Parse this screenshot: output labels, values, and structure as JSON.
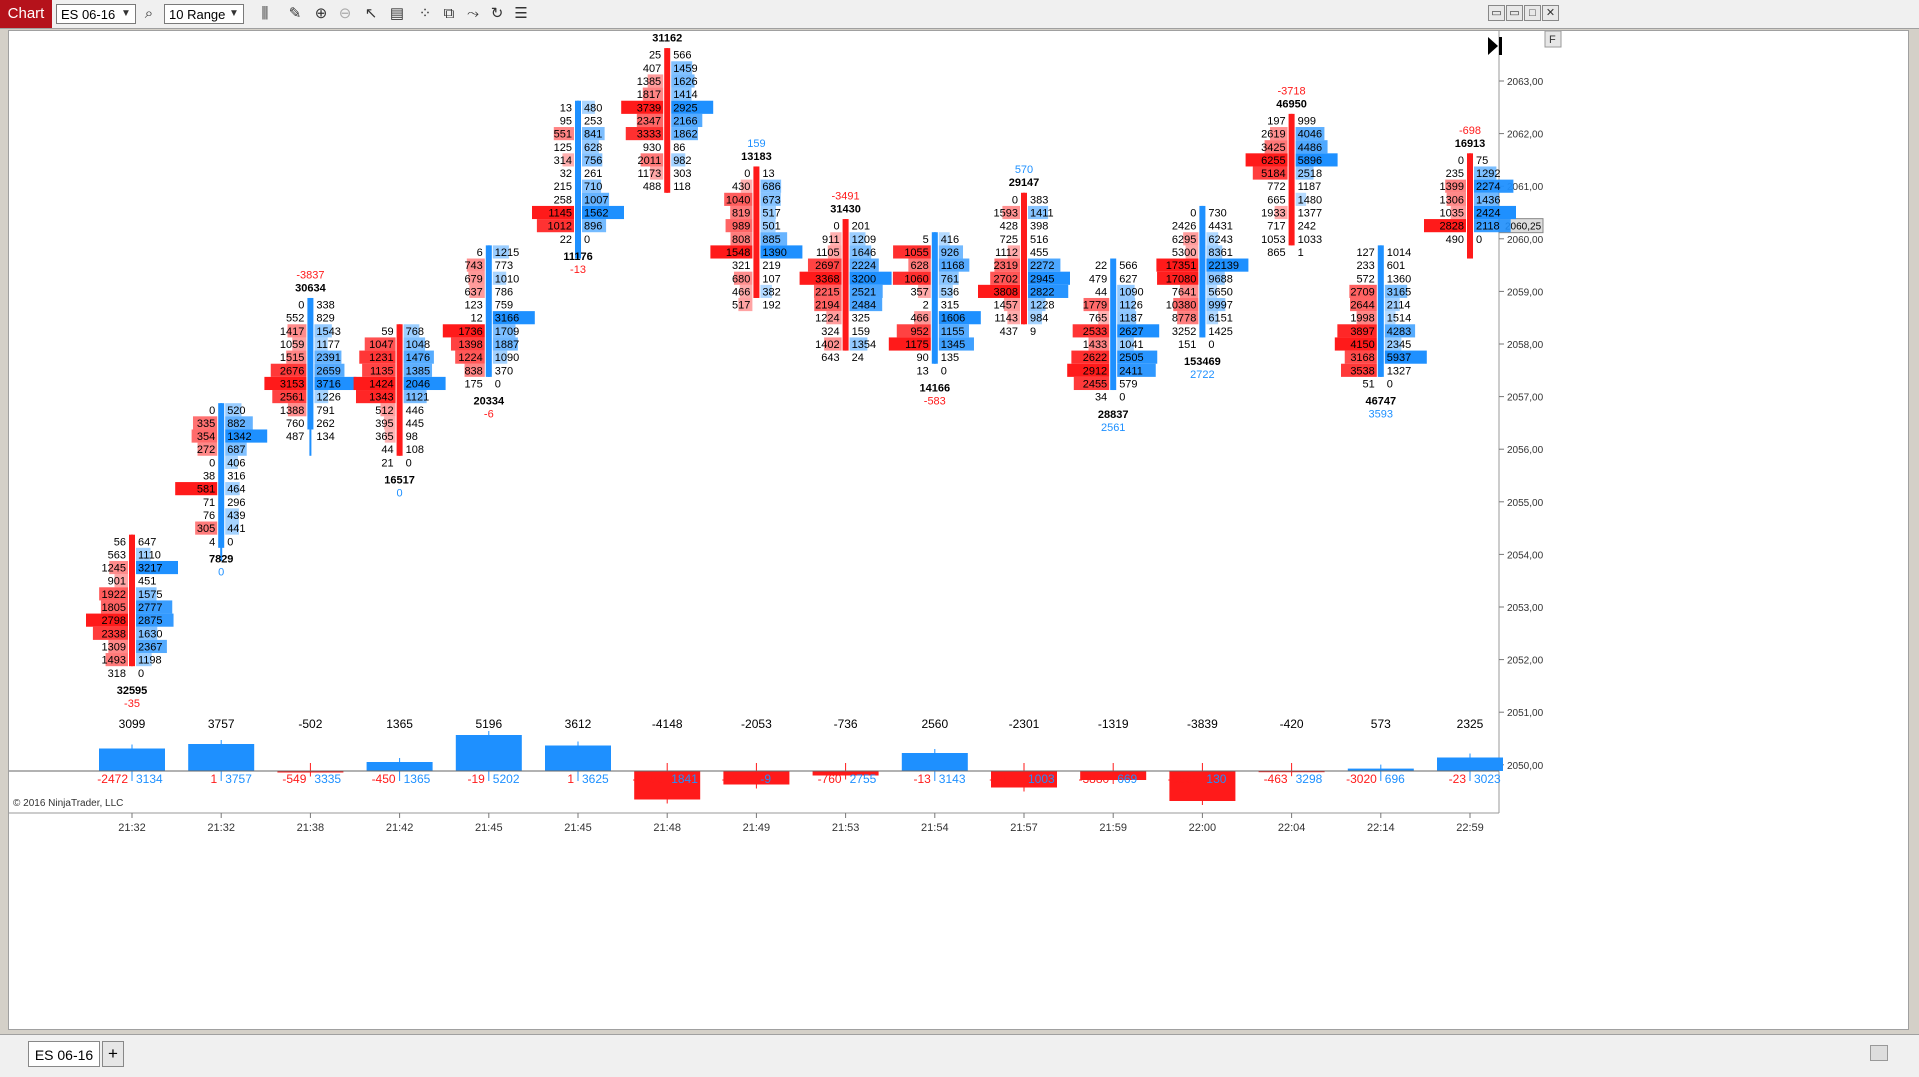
{
  "toolbar": {
    "chart_label": "Chart",
    "instrument": "ES 06-16",
    "period": "10 Range",
    "icons": [
      "search-icon",
      "bar-type-icon",
      "pencil-icon",
      "zoom-in-icon",
      "zoom-out-icon",
      "pointer-icon",
      "properties-icon",
      "data-box-icon",
      "strategy-icon",
      "indicator-icon",
      "reload-icon",
      "menu-icon"
    ]
  },
  "window": {
    "icons": [
      "minimize-icon",
      "restore-icon",
      "maximize-icon",
      "close-icon"
    ]
  },
  "colors": {
    "bid": "#ff1a1a",
    "ask": "#1e90ff",
    "bid_strong": "#ff3333",
    "ask_strong": "#1e90ff"
  },
  "copyright": "© 2016 NinjaTrader, LLC",
  "corner_label": "F",
  "price_axis": {
    "labels": [
      "2063,00",
      "2062,00",
      "2061,00",
      "2060,00",
      "2059,00",
      "2058,00",
      "2057,00",
      "2056,00",
      "2055,00",
      "2054,00",
      "2053,00",
      "2052,00",
      "2051,00",
      "2050,00"
    ],
    "current": "2060,25"
  },
  "bottom_tab": {
    "label": "ES 06-16",
    "add": "+"
  },
  "chart_data": {
    "type": "footprint",
    "time_labels": [
      "21:32",
      "21:32",
      "21:38",
      "21:42",
      "21:45",
      "21:45",
      "21:48",
      "21:49",
      "21:53",
      "21:54",
      "21:57",
      "21:59",
      "22:00",
      "22:04",
      "22:14",
      "22:59"
    ],
    "bars": [
      {
        "top": 2054.25,
        "open": 2054.25,
        "close": 2052.0,
        "high": 2054.25,
        "low": 2052.0,
        "bid": [
          "56",
          "563",
          "1245",
          "901",
          "1922",
          "1805",
          "2798",
          "2338",
          "1309",
          "1493",
          "318"
        ],
        "ask": [
          "647",
          "1110",
          "3217",
          "451",
          "1575",
          "2777",
          "2875",
          "1630",
          "2367",
          "1198",
          "0"
        ],
        "above": [],
        "below": [
          "32595",
          "-35"
        ],
        "delta": "3099",
        "vol_bid": "-2472",
        "vol_ask": "3134",
        "sign": 1,
        "size": 0.75
      },
      {
        "top": 2056.75,
        "open": 2054.25,
        "close": 2056.75,
        "high": 2056.75,
        "low": 2054.0,
        "bid": [
          "0",
          "335",
          "354",
          "272",
          "0",
          "38",
          "581",
          "71",
          "76",
          "305",
          "4"
        ],
        "ask": [
          "520",
          "882",
          "1342",
          "687",
          "406",
          "316",
          "464",
          "296",
          "439",
          "441",
          "0"
        ],
        "above": [],
        "below": [
          "7829",
          "0"
        ],
        "delta": "3757",
        "vol_bid": "1",
        "vol_ask": "3757",
        "sign": 1,
        "size": 0.9
      },
      {
        "top": 2058.75,
        "open": 2056.5,
        "close": 2058.75,
        "high": 2058.75,
        "low": 2056.0,
        "bid": [
          "0",
          "552",
          "1417",
          "1059",
          "1515",
          "2676",
          "3153",
          "2561",
          "1388",
          "760",
          "487"
        ],
        "ask": [
          "338",
          "829",
          "1543",
          "1177",
          "2391",
          "2659",
          "3716",
          "1226",
          "791",
          "262",
          "134"
        ],
        "above": [
          "-3837",
          "30634"
        ],
        "below": [],
        "delta": "-502",
        "vol_bid": "-549",
        "vol_ask": "3335",
        "sign": -1,
        "size": 0.05
      },
      {
        "top": 2058.25,
        "open": 2058.25,
        "close": 2056.0,
        "high": 2058.25,
        "low": 2056.0,
        "bid": [
          "59",
          "1047",
          "1231",
          "1135",
          "1424",
          "1343",
          "512",
          "395",
          "365",
          "44",
          "21"
        ],
        "ask": [
          "768",
          "1048",
          "1476",
          "1385",
          "2046",
          "1121",
          "446",
          "445",
          "98",
          "108",
          "0"
        ],
        "above": [],
        "below": [
          "16517",
          "0"
        ],
        "delta": "1365",
        "vol_bid": "-450",
        "vol_ask": "1365",
        "sign": 1,
        "size": 0.3
      },
      {
        "top": 2059.75,
        "open": 2057.5,
        "close": 2059.75,
        "high": 2059.75,
        "low": 2057.5,
        "bid": [
          "6",
          "743",
          "679",
          "637",
          "123",
          "12",
          "1736",
          "1398",
          "1224",
          "838",
          "175"
        ],
        "ask": [
          "1215",
          "773",
          "1010",
          "786",
          "759",
          "3166",
          "1709",
          "1887",
          "1090",
          "370",
          "0"
        ],
        "above": [],
        "below": [
          "20334",
          "-6"
        ],
        "delta": "5196",
        "vol_bid": "-19",
        "vol_ask": "5202",
        "sign": 1,
        "size": 1.2
      },
      {
        "top": 2062.5,
        "open": 2059.75,
        "close": 2062.5,
        "high": 2062.5,
        "low": 2059.75,
        "bid": [
          "13",
          "95",
          "551",
          "125",
          "314",
          "32",
          "215",
          "258",
          "1145",
          "1012",
          "22"
        ],
        "ask": [
          "480",
          "253",
          "841",
          "628",
          "756",
          "261",
          "710",
          "1007",
          "1562",
          "896",
          "0"
        ],
        "above": [],
        "below": [
          "11176",
          "-13"
        ],
        "delta": "3612",
        "vol_bid": "1",
        "vol_ask": "3625",
        "sign": 1,
        "size": 0.85
      },
      {
        "top": 2063.5,
        "open": 2063.5,
        "close": 2061.0,
        "high": 2063.5,
        "low": 2061.0,
        "bid": [
          "25",
          "407",
          "1385",
          "1817",
          "3739",
          "2347",
          "3333",
          "930",
          "2011",
          "1173",
          "488"
        ],
        "ask": [
          "566",
          "1459",
          "1626",
          "1414",
          "2925",
          "2166",
          "1862",
          "86",
          "982",
          "303",
          "118"
        ],
        "above": [
          "31162"
        ],
        "below": [],
        "delta": "-4148",
        "vol_bid": "-4183",
        "vol_ask": "1841",
        "sign": -1,
        "size": 0.95
      },
      {
        "top": 2061.25,
        "open": 2061.25,
        "close": 2059.0,
        "high": 2061.25,
        "low": 2059.0,
        "bid": [
          "0",
          "430",
          "1040",
          "819",
          "989",
          "808",
          "1548",
          "321",
          "680",
          "466",
          "517"
        ],
        "ask": [
          "13",
          "686",
          "673",
          "517",
          "501",
          "885",
          "1390",
          "219",
          "107",
          "382",
          "192"
        ],
        "above": [
          "159",
          "13183"
        ],
        "below": [],
        "delta": "-2053",
        "vol_bid": "-2212",
        "vol_ask": "-9",
        "sign": -1,
        "size": 0.45
      },
      {
        "top": 2060.25,
        "open": 2060.25,
        "close": 2058.0,
        "high": 2060.25,
        "low": 2058.0,
        "bid": [
          "0",
          "911",
          "1105",
          "2697",
          "3368",
          "2215",
          "2194",
          "1224",
          "324",
          "1402",
          "643"
        ],
        "ask": [
          "201",
          "1209",
          "1646",
          "2224",
          "3200",
          "2521",
          "2484",
          "325",
          "159",
          "1354",
          "24"
        ],
        "above": [
          "-3491",
          "31430"
        ],
        "below": [],
        "delta": "-736",
        "vol_bid": "-760",
        "vol_ask": "2755",
        "sign": -1,
        "size": 0.15
      },
      {
        "top": 2060.0,
        "open": 2057.75,
        "close": 2060.0,
        "high": 2060.0,
        "low": 2057.75,
        "bid": [
          "5",
          "1055",
          "628",
          "1060",
          "357",
          "2",
          "466",
          "952",
          "1175",
          "90",
          "13"
        ],
        "ask": [
          "416",
          "926",
          "1168",
          "761",
          "536",
          "315",
          "1606",
          "1155",
          "1345",
          "135",
          "0"
        ],
        "above": [],
        "below": [
          "14166",
          "-583"
        ],
        "delta": "2560",
        "vol_bid": "-13",
        "vol_ask": "3143",
        "sign": 1,
        "size": 0.6
      },
      {
        "top": 2060.75,
        "open": 2060.75,
        "close": 2058.5,
        "high": 2060.75,
        "low": 2058.5,
        "bid": [
          "0",
          "1593",
          "428",
          "725",
          "1112",
          "2319",
          "2702",
          "3808",
          "1457",
          "1143",
          "437"
        ],
        "ask": [
          "383",
          "1411",
          "398",
          "516",
          "455",
          "2272",
          "2945",
          "2822",
          "1228",
          "984",
          "9"
        ],
        "above": [
          "570",
          "29147"
        ],
        "below": [],
        "delta": "-2301",
        "vol_bid": "-2871",
        "vol_ask": "1003",
        "sign": -1,
        "size": 0.55
      },
      {
        "top": 2059.5,
        "open": 2057.25,
        "close": 2059.5,
        "high": 2059.5,
        "low": 2057.25,
        "bid": [
          "22",
          "479",
          "44",
          "1779",
          "765",
          "2533",
          "1433",
          "2622",
          "2912",
          "2455",
          "34"
        ],
        "ask": [
          "566",
          "627",
          "1090",
          "1126",
          "1187",
          "2627",
          "1041",
          "2505",
          "2411",
          "579",
          "0"
        ],
        "above": [],
        "below": [
          "28837",
          "2561"
        ],
        "delta": "-1319",
        "vol_bid": "-3880",
        "vol_ask": "669",
        "sign": -1,
        "size": 0.3
      },
      {
        "top": 2060.5,
        "open": 2058.25,
        "close": 2060.5,
        "high": 2060.5,
        "low": 2058.25,
        "bid": [
          "0",
          "2426",
          "6295",
          "5300",
          "17351",
          "17080",
          "7641",
          "10380",
          "8778",
          "3252",
          "151"
        ],
        "ask": [
          "730",
          "4431",
          "6243",
          "8361",
          "22139",
          "9688",
          "5650",
          "9997",
          "6151",
          "1425",
          "0"
        ],
        "above": [],
        "below": [
          "153469",
          "2722"
        ],
        "delta": "-3839",
        "vol_bid": "-6561",
        "vol_ask": "130",
        "sign": -1,
        "size": 1.0
      },
      {
        "top": 2062.25,
        "open": 2062.25,
        "close": 2060.0,
        "high": 2062.25,
        "low": 2060.0,
        "bid": [
          "197",
          "2619",
          "3425",
          "6255",
          "5184",
          "772",
          "665",
          "1933",
          "717",
          "1053",
          "865"
        ],
        "ask": [
          "999",
          "4046",
          "4486",
          "5896",
          "2518",
          "1187",
          "1480",
          "1377",
          "242",
          "1033",
          "1"
        ],
        "above": [
          "-3718",
          "46950"
        ],
        "below": [],
        "delta": "-420",
        "vol_bid": "-463",
        "vol_ask": "3298",
        "sign": -1,
        "size": 0.04
      },
      {
        "top": 2059.75,
        "open": 2057.5,
        "close": 2059.75,
        "high": 2059.75,
        "low": 2057.5,
        "bid": [
          "127",
          "233",
          "572",
          "2709",
          "2644",
          "1998",
          "3897",
          "4150",
          "3168",
          "3538",
          "51"
        ],
        "ask": [
          "1014",
          "601",
          "1360",
          "3165",
          "2114",
          "1514",
          "4283",
          "2345",
          "5937",
          "1327",
          "0"
        ],
        "above": [],
        "below": [
          "46747",
          "3593"
        ],
        "delta": "573",
        "vol_bid": "-3020",
        "vol_ask": "696",
        "sign": 1,
        "size": 0.08
      },
      {
        "top": 2061.5,
        "open": 2061.5,
        "close": 2059.75,
        "high": 2061.5,
        "low": 2059.75,
        "bid": [
          "0",
          "235",
          "1399",
          "1306",
          "1035",
          "2828",
          "490"
        ],
        "ask": [
          "75",
          "1292",
          "2274",
          "1436",
          "2424",
          "2118",
          "0"
        ],
        "above": [
          "-698",
          "16913"
        ],
        "below": [],
        "delta": "2325",
        "vol_bid": "-23",
        "vol_ask": "3023",
        "sign": 1,
        "size": 0.45
      }
    ]
  }
}
